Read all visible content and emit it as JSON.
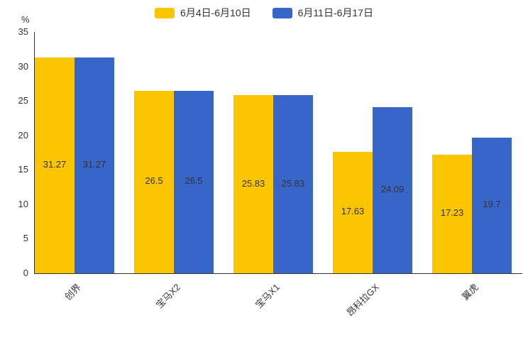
{
  "chart": {
    "unit_label": "%",
    "colors": {
      "series1": "#FBC500",
      "series2": "#3866C8",
      "text": "#333333",
      "axis": "#333333"
    },
    "legend": [
      {
        "label": "6月4日-6月10日",
        "color": "#FBC500"
      },
      {
        "label": "6月11日-6月17日",
        "color": "#3866C8"
      }
    ]
  },
  "chart_data": {
    "type": "bar",
    "categories": [
      "创界",
      "宝马X2",
      "宝马X1",
      "昂科拉GX",
      "翼虎"
    ],
    "series": [
      {
        "name": "6月4日-6月10日",
        "color": "#FBC500",
        "values": [
          31.27,
          26.5,
          25.83,
          17.63,
          17.23
        ]
      },
      {
        "name": "6月11日-6月17日",
        "color": "#3866C8",
        "values": [
          31.27,
          26.5,
          25.83,
          24.09,
          19.7
        ]
      }
    ],
    "title": "",
    "xlabel": "",
    "ylabel": "%",
    "ylim": [
      0,
      35
    ],
    "yticks": [
      0,
      5,
      10,
      15,
      20,
      25,
      30,
      35
    ],
    "grid": false,
    "legend_position": "top-center",
    "value_labels": "centered-inside-bars"
  }
}
